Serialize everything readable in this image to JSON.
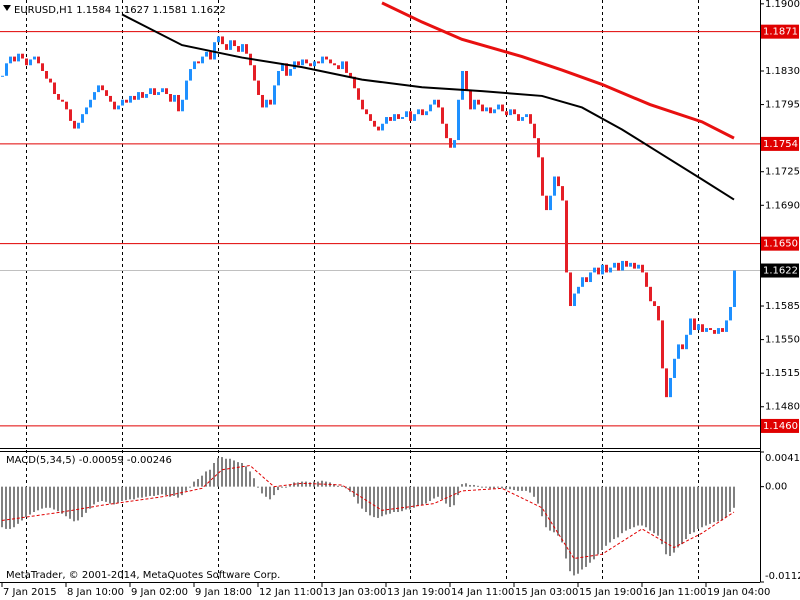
{
  "chart_data": [
    {
      "type": "candlestick",
      "title": "EURUSD,H1  1.1584 1.1627 1.1581 1.1622",
      "up_color": "#1e90ff",
      "down_color": "#e41e26",
      "closes": [
        1.1825,
        1.1838,
        1.1845,
        1.184,
        1.1848,
        1.1843,
        1.1836,
        1.1842,
        1.1845,
        1.1838,
        1.183,
        1.1822,
        1.1818,
        1.1806,
        1.18,
        1.1798,
        1.179,
        1.1778,
        1.177,
        1.1776,
        1.1785,
        1.1792,
        1.18,
        1.1808,
        1.1815,
        1.181,
        1.1804,
        1.1798,
        1.179,
        1.1794,
        1.18,
        1.1797,
        1.1804,
        1.18,
        1.1808,
        1.1802,
        1.1806,
        1.1812,
        1.1805,
        1.1808,
        1.1812,
        1.1806,
        1.1798,
        1.1805,
        1.1788,
        1.18,
        1.182,
        1.1832,
        1.184,
        1.1838,
        1.1845,
        1.185,
        1.1842,
        1.186,
        1.1866,
        1.1858,
        1.1852,
        1.1862,
        1.1856,
        1.185,
        1.1858,
        1.1848,
        1.1836,
        1.182,
        1.1805,
        1.1792,
        1.18,
        1.1795,
        1.1815,
        1.183,
        1.1838,
        1.1825,
        1.1832,
        1.184,
        1.1836,
        1.1842,
        1.1838,
        1.1835,
        1.184,
        1.1838,
        1.1845,
        1.1842,
        1.1838,
        1.1836,
        1.1832,
        1.184,
        1.1828,
        1.1824,
        1.1812,
        1.18,
        1.179,
        1.1785,
        1.1778,
        1.1772,
        1.1768,
        1.1775,
        1.1782,
        1.1778,
        1.1785,
        1.178,
        1.1782,
        1.1788,
        1.1778,
        1.1785,
        1.179,
        1.1784,
        1.1788,
        1.1795,
        1.18,
        1.1792,
        1.1775,
        1.176,
        1.175,
        1.1758,
        1.18,
        1.183,
        1.181,
        1.179,
        1.18,
        1.1795,
        1.1788,
        1.1792,
        1.1786,
        1.179,
        1.1795,
        1.1788,
        1.1784,
        1.179,
        1.1785,
        1.1778,
        1.1782,
        1.1785,
        1.1775,
        1.176,
        1.174,
        1.17,
        1.1685,
        1.17,
        1.172,
        1.171,
        1.1695,
        1.162,
        1.1585,
        1.1598,
        1.1605,
        1.1615,
        1.161,
        1.162,
        1.1625,
        1.1618,
        1.1628,
        1.162,
        1.1625,
        1.163,
        1.1622,
        1.1632,
        1.1626,
        1.163,
        1.1624,
        1.1628,
        1.162,
        1.1605,
        1.159,
        1.1585,
        1.157,
        1.152,
        1.149,
        1.151,
        1.153,
        1.1545,
        1.154,
        1.1555,
        1.1572,
        1.156,
        1.1566,
        1.1558,
        1.1562,
        1.156,
        1.1556,
        1.1562,
        1.1558,
        1.157,
        1.1584,
        1.1622
      ],
      "ma": [
        {
          "color": "#000000",
          "width": 2,
          "x": [
            30,
            45,
            60,
            75,
            90,
            105,
            120,
            135,
            145,
            155,
            165,
            175,
            183
          ],
          "values": [
            1.1889,
            1.1857,
            1.1844,
            1.1834,
            1.1821,
            1.1813,
            1.1809,
            1.1804,
            1.1792,
            1.1769,
            1.1743,
            1.1717,
            1.1696
          ]
        },
        {
          "color": "#e81010",
          "width": 3,
          "x": [
            95,
            105,
            115,
            130,
            140,
            150,
            162,
            175,
            183
          ],
          "values": [
            1.1901,
            1.1881,
            1.1863,
            1.1845,
            1.1831,
            1.1816,
            1.1795,
            1.1777,
            1.176
          ]
        }
      ],
      "hline_color": "#e00000",
      "hlines": [
        1.1871,
        1.1754,
        {
          "value": 1.165,
          "label": "1.1650"
        },
        {
          "value": 1.146,
          "label": "1.1460"
        }
      ],
      "last_price": 1.1622,
      "separators": [
        6,
        30,
        54,
        78,
        102,
        126,
        150,
        174
      ],
      "ylim": [
        1.1437,
        1.1904
      ],
      "yticks": [
        {
          "value": 1.19,
          "label": "1.1900"
        },
        {
          "value": 1.183,
          "label": "1.1830"
        },
        {
          "value": 1.1795,
          "label": "1.1795"
        },
        {
          "value": 1.1725,
          "label": "1.1725"
        },
        {
          "value": 1.169,
          "label": "1.1690"
        },
        {
          "value": 1.1585,
          "label": "1.1585"
        },
        {
          "value": 1.155,
          "label": "1.1550"
        },
        {
          "value": 1.1515,
          "label": "1.1515"
        },
        {
          "value": 1.148,
          "label": "1.1480"
        }
      ],
      "xticks": [
        {
          "value": 0,
          "label": "7 Jan 2015"
        },
        {
          "value": 16,
          "label": "8 Jan 10:00"
        },
        {
          "value": 32,
          "label": "9 Jan 02:00"
        },
        {
          "value": 48,
          "label": "9 Jan 18:00"
        },
        {
          "value": 64,
          "label": "12 Jan 11:00"
        },
        {
          "value": 80,
          "label": "13 Jan 03:00"
        },
        {
          "value": 96,
          "label": "13 Jan 19:00"
        },
        {
          "value": 112,
          "label": "14 Jan 11:00"
        },
        {
          "value": 128,
          "label": "15 Jan 03:00"
        },
        {
          "value": 144,
          "label": "15 Jan 19:00"
        },
        {
          "value": 160,
          "label": "16 Jan 11:00"
        },
        {
          "value": 176,
          "label": "19 Jan 04:00"
        }
      ]
    },
    {
      "type": "macd",
      "title": "MACD(5,34,5) -0.00059 -0.00246",
      "annotation": "MetaTrader, © 2001-2014, MetaQuotes Software Corp.",
      "color": "#808080",
      "values": [
        -0.0048,
        -0.005,
        -0.005,
        -0.0048,
        -0.0044,
        -0.004,
        -0.0036,
        -0.0033,
        -0.003,
        -0.0028,
        -0.0026,
        -0.0025,
        -0.0025,
        -0.0027,
        -0.0029,
        -0.0032,
        -0.0035,
        -0.0038,
        -0.0041,
        -0.004,
        -0.0036,
        -0.0031,
        -0.0026,
        -0.0021,
        -0.0018,
        -0.0017,
        -0.0018,
        -0.002,
        -0.0021,
        -0.0019,
        -0.0017,
        -0.0016,
        -0.0015,
        -0.0015,
        -0.0013,
        -0.0013,
        -0.0012,
        -0.0011,
        -0.0011,
        -0.001,
        -0.0009,
        -0.001,
        -0.0012,
        -0.0011,
        -0.0013,
        -0.001,
        -0.0005,
        0.0,
        0.0006,
        0.0009,
        0.0013,
        0.0018,
        0.002,
        0.0028,
        0.0034,
        0.0035,
        0.0033,
        0.0033,
        0.0031,
        0.0029,
        0.0028,
        0.0024,
        0.0018,
        0.001,
        0.0,
        -0.0008,
        -0.0012,
        -0.0015,
        -0.001,
        -0.0004,
        0.0,
        0.0,
        0.0002,
        0.0005,
        0.0005,
        0.0006,
        0.0006,
        0.0005,
        0.0006,
        0.0006,
        0.0007,
        0.0006,
        0.0005,
        0.0003,
        0.0001,
        0.0001,
        -0.0002,
        -0.0006,
        -0.0012,
        -0.002,
        -0.0026,
        -0.003,
        -0.0034,
        -0.0036,
        -0.0037,
        -0.0035,
        -0.0033,
        -0.0032,
        -0.003,
        -0.003,
        -0.0029,
        -0.0027,
        -0.0027,
        -0.0025,
        -0.0023,
        -0.0022,
        -0.002,
        -0.0017,
        -0.0014,
        -0.0012,
        -0.0015,
        -0.002,
        -0.0024,
        -0.0022,
        -0.001,
        0.0003,
        0.0004,
        0.0002,
        0.0002,
        0.0001,
        -0.0001,
        -0.0001,
        -0.0002,
        -0.0002,
        -0.0001,
        -0.0002,
        -0.0003,
        -0.0003,
        -0.0004,
        -0.0005,
        -0.0005,
        -0.0005,
        -0.0007,
        -0.0012,
        -0.002,
        -0.0035,
        -0.0048,
        -0.0052,
        -0.0054,
        -0.0058,
        -0.0066,
        -0.0085,
        -0.01,
        -0.0105,
        -0.0103,
        -0.0098,
        -0.0095,
        -0.009,
        -0.0086,
        -0.008,
        -0.0075,
        -0.007,
        -0.0066,
        -0.0062,
        -0.006,
        -0.0055,
        -0.0052,
        -0.005,
        -0.0048,
        -0.0046,
        -0.0046,
        -0.0048,
        -0.0052,
        -0.0055,
        -0.0058,
        -0.0068,
        -0.008,
        -0.0082,
        -0.0078,
        -0.0072,
        -0.0068,
        -0.0062,
        -0.0056,
        -0.0054,
        -0.005,
        -0.0048,
        -0.0046,
        -0.0044,
        -0.0042,
        -0.0041,
        -0.004,
        -0.0036,
        -0.003,
        -0.0025
      ],
      "signal": {
        "color": "#e00000",
        "x": [
          0,
          15,
          25,
          40,
          50,
          55,
          62,
          68,
          75,
          85,
          95,
          108,
          115,
          125,
          135,
          143,
          150,
          160,
          168,
          175,
          183
        ],
        "values": [
          -0.004,
          -0.003,
          -0.0022,
          -0.0012,
          -0.0002,
          0.002,
          0.0025,
          0.0,
          0.0004,
          0.0002,
          -0.0028,
          -0.002,
          -0.0005,
          -0.0002,
          -0.0025,
          -0.0085,
          -0.008,
          -0.005,
          -0.0072,
          -0.0055,
          -0.003
        ]
      },
      "ylim": [
        -0.01128,
        0.0041
      ],
      "yticks": [
        0.0041,
        {
          "value": 0,
          "label": "0.00"
        },
        -0.01128
      ]
    }
  ]
}
